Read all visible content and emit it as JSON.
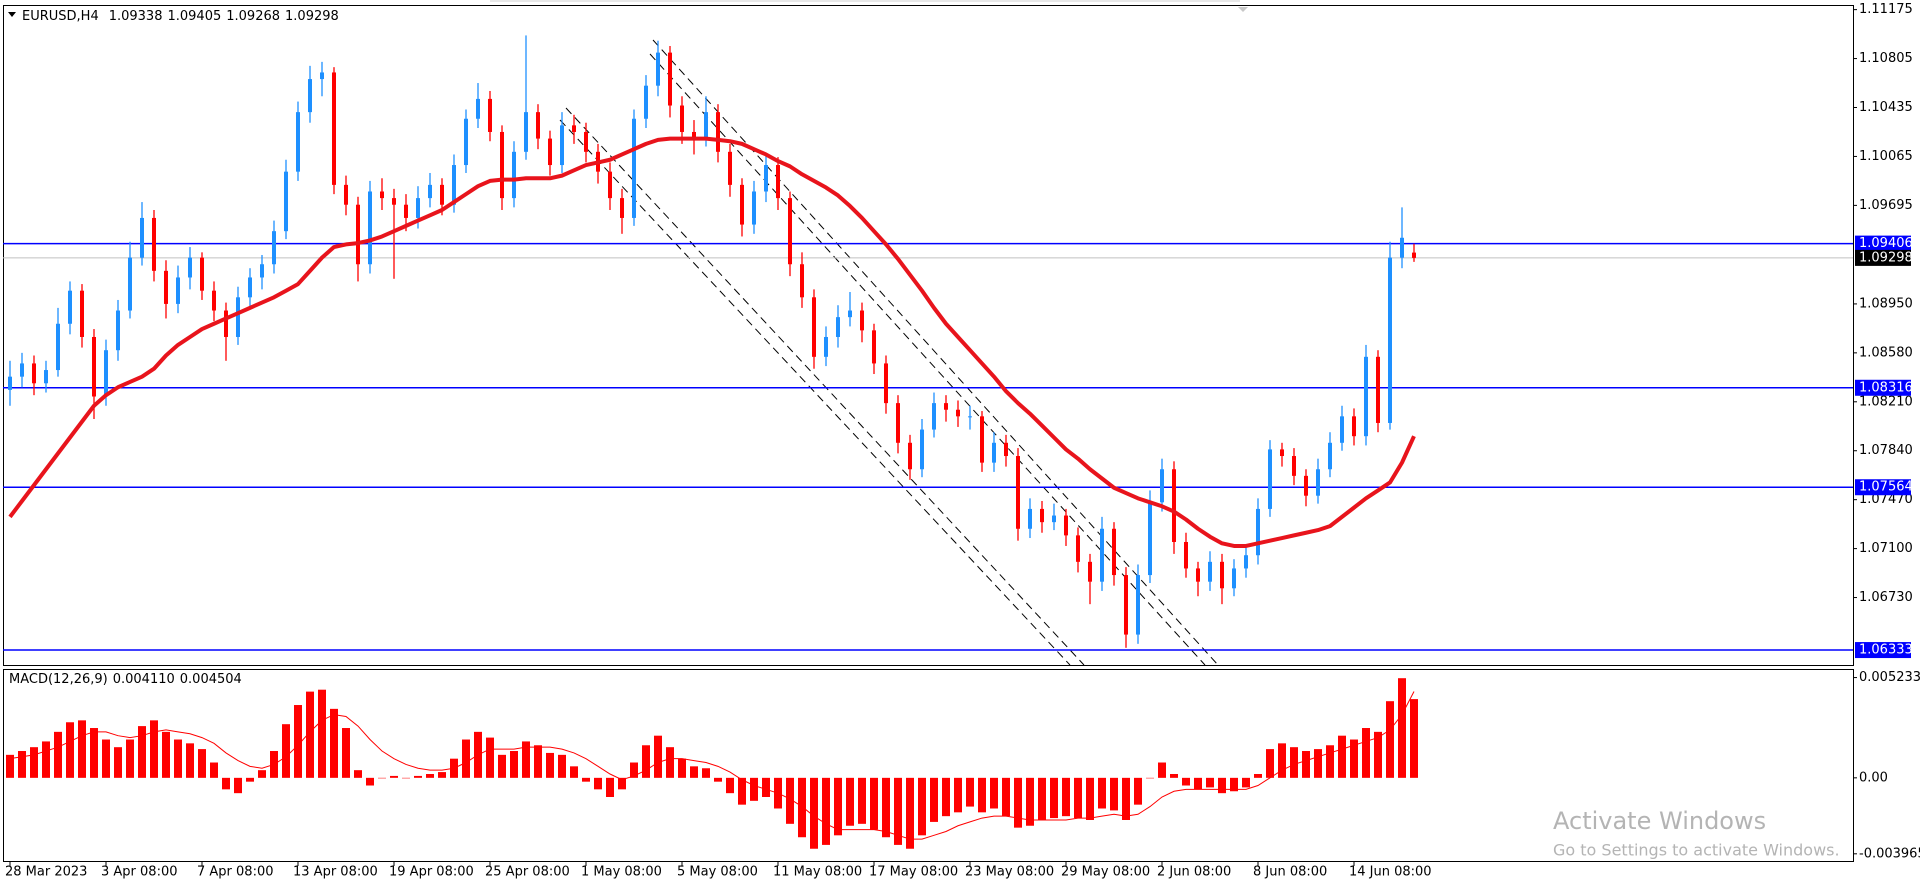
{
  "chart_data": [
    {
      "type": "candlestick",
      "title": "EURUSD,H4",
      "categories": [
        "28 Mar 2023",
        null,
        null,
        null,
        null,
        null,
        null,
        null,
        "3 Apr 08:00",
        null,
        null,
        null,
        null,
        null,
        null,
        null,
        "7 Apr 08:00",
        null,
        null,
        null,
        null,
        null,
        null,
        null,
        "13 Apr 08:00",
        null,
        null,
        null,
        null,
        null,
        null,
        null,
        "19 Apr 08:00",
        null,
        null,
        null,
        null,
        null,
        null,
        null,
        "25 Apr 08:00",
        null,
        null,
        null,
        null,
        null,
        null,
        null,
        "1 May 08:00",
        null,
        null,
        null,
        null,
        null,
        null,
        null,
        "5 May 08:00",
        null,
        null,
        null,
        null,
        null,
        null,
        null,
        "11 May 08:00",
        null,
        null,
        null,
        null,
        null,
        null,
        null,
        "17 May 08:00",
        null,
        null,
        null,
        null,
        null,
        null,
        null,
        "23 May 08:00",
        null,
        null,
        null,
        null,
        null,
        null,
        null,
        "29 May 08:00",
        null,
        null,
        null,
        null,
        null,
        null,
        null,
        "2 Jun 08:00",
        null,
        null,
        null,
        null,
        null,
        null,
        null,
        "8 Jun 08:00",
        null,
        null,
        null,
        null,
        null,
        null,
        null,
        "14 Jun 08:00",
        null,
        null,
        null,
        null,
        null
      ],
      "open": [
        1.083,
        1.084,
        1.085,
        1.0835,
        1.0845,
        1.088,
        1.0905,
        1.087,
        1.0825,
        1.086,
        1.089,
        1.093,
        1.096,
        1.092,
        1.0895,
        1.0915,
        1.093,
        1.0905,
        1.089,
        1.087,
        1.09,
        1.0915,
        1.0925,
        1.095,
        1.0995,
        1.104,
        1.1065,
        1.107,
        1.0985,
        1.097,
        1.0925,
        1.098,
        1.0975,
        1.097,
        1.096,
        1.0975,
        1.0985,
        1.097,
        1.1,
        1.1035,
        1.105,
        1.1025,
        1.0975,
        1.101,
        1.104,
        1.102,
        1.1,
        1.103,
        1.1025,
        1.101,
        1.0995,
        1.0975,
        1.096,
        1.1035,
        1.106,
        1.1085,
        1.1045,
        1.1025,
        1.102,
        1.104,
        1.101,
        1.0985,
        1.0955,
        1.098,
        1.1,
        1.0975,
        1.0925,
        1.09,
        1.0855,
        1.087,
        1.0885,
        1.089,
        1.0875,
        1.085,
        1.082,
        1.079,
        1.077,
        1.08,
        1.082,
        1.0815,
        1.081,
        1.081,
        1.0775,
        1.079,
        1.078,
        1.0725,
        1.074,
        1.073,
        1.0735,
        1.072,
        1.07,
        1.0685,
        1.0725,
        1.069,
        1.0645,
        1.069,
        1.0745,
        1.077,
        1.0715,
        1.0695,
        1.0685,
        1.07,
        1.068,
        1.0695,
        1.0705,
        1.074,
        1.0785,
        1.078,
        1.0765,
        1.075,
        1.077,
        1.079,
        1.081,
        1.0795,
        1.0855,
        1.0805,
        1.093,
        1.09338
      ],
      "high": [
        1.0852,
        1.0858,
        1.0856,
        1.0852,
        1.0892,
        1.0912,
        1.091,
        1.0876,
        1.0868,
        1.0898,
        1.0942,
        1.0972,
        1.0966,
        1.0928,
        1.0924,
        1.0938,
        1.0934,
        1.0912,
        1.0896,
        1.0908,
        1.0922,
        1.0932,
        1.0958,
        1.1004,
        1.1048,
        1.1075,
        1.1078,
        1.1074,
        1.0992,
        1.0976,
        1.0988,
        1.099,
        1.0982,
        1.0978,
        1.0984,
        1.0994,
        1.099,
        1.1008,
        1.1042,
        1.1062,
        1.1056,
        1.103,
        1.1018,
        1.1098,
        1.1046,
        1.1026,
        1.104,
        1.1038,
        1.1032,
        1.1016,
        1.1002,
        1.0982,
        1.1042,
        1.1068,
        1.1094,
        1.109,
        1.1052,
        1.1034,
        1.1052,
        1.1046,
        1.1016,
        1.099,
        1.0988,
        1.1008,
        1.1006,
        1.098,
        1.0934,
        1.0906,
        1.0878,
        1.0894,
        1.0904,
        1.0896,
        1.088,
        1.0856,
        1.0826,
        1.0796,
        1.0808,
        1.0828,
        1.0826,
        1.0822,
        1.0818,
        1.0814,
        1.0798,
        1.0796,
        1.0786,
        1.0748,
        1.0746,
        1.0744,
        1.074,
        1.0726,
        1.0706,
        1.0734,
        1.073,
        1.0696,
        1.0698,
        1.0754,
        1.0778,
        1.0776,
        1.0722,
        1.07,
        1.0708,
        1.0706,
        1.0702,
        1.0712,
        1.0748,
        1.0792,
        1.079,
        1.0786,
        1.077,
        1.0778,
        1.0798,
        1.0818,
        1.0816,
        1.0864,
        1.086,
        1.0942,
        1.0968,
        1.09405
      ],
      "low": [
        1.0818,
        1.0832,
        1.0826,
        1.0828,
        1.084,
        1.0872,
        1.0862,
        1.0808,
        1.0818,
        1.0852,
        1.0884,
        1.0924,
        1.0912,
        1.0884,
        1.0888,
        1.0906,
        1.0898,
        1.0882,
        1.0852,
        1.0864,
        1.0892,
        1.0906,
        1.0918,
        1.0944,
        1.0988,
        1.1032,
        1.1052,
        1.0978,
        1.0962,
        1.0912,
        1.0918,
        1.0966,
        1.0914,
        1.095,
        1.0952,
        1.0968,
        1.0962,
        1.0964,
        1.0994,
        1.1028,
        1.1018,
        1.0966,
        1.0968,
        1.1004,
        1.1012,
        1.0992,
        1.0994,
        1.1016,
        1.1002,
        1.0986,
        1.0966,
        1.0948,
        1.0954,
        1.1028,
        1.1052,
        1.1036,
        1.1016,
        1.1008,
        1.1014,
        1.1002,
        1.0976,
        1.0946,
        1.0948,
        1.0972,
        1.0966,
        1.0916,
        1.0892,
        1.0846,
        1.0848,
        1.0862,
        1.0878,
        1.0866,
        1.0842,
        1.0812,
        1.0782,
        1.0762,
        1.0764,
        1.0794,
        1.0806,
        1.0802,
        1.08,
        1.0768,
        1.0768,
        1.0772,
        1.0716,
        1.0718,
        1.0722,
        1.0724,
        1.0712,
        1.0692,
        1.0668,
        1.0678,
        1.0682,
        1.0635,
        1.0638,
        1.0684,
        1.0738,
        1.0706,
        1.0688,
        1.0674,
        1.0678,
        1.0668,
        1.0674,
        1.0688,
        1.0698,
        1.0734,
        1.0772,
        1.0758,
        1.0742,
        1.0744,
        1.0764,
        1.0784,
        1.0788,
        1.0788,
        1.0798,
        1.08,
        1.0922,
        1.09268
      ],
      "close": [
        1.084,
        1.085,
        1.0835,
        1.0845,
        1.088,
        1.0905,
        1.087,
        1.0825,
        1.086,
        1.089,
        1.093,
        1.096,
        1.092,
        1.0895,
        1.0915,
        1.093,
        1.0905,
        1.089,
        1.087,
        1.09,
        1.0915,
        1.0925,
        1.095,
        1.0995,
        1.104,
        1.1065,
        1.107,
        1.0985,
        1.097,
        1.0925,
        1.098,
        1.0975,
        1.097,
        1.096,
        1.0975,
        1.0985,
        1.097,
        1.1,
        1.1035,
        1.105,
        1.1025,
        1.0975,
        1.101,
        1.104,
        1.102,
        1.1,
        1.103,
        1.1025,
        1.101,
        1.0995,
        1.0975,
        1.096,
        1.1035,
        1.106,
        1.1085,
        1.1045,
        1.1025,
        1.102,
        1.104,
        1.101,
        1.0985,
        1.0955,
        1.098,
        1.1,
        1.0975,
        1.0925,
        1.09,
        1.0855,
        1.087,
        1.0885,
        1.089,
        1.0875,
        1.085,
        1.082,
        1.079,
        1.077,
        1.08,
        1.082,
        1.0815,
        1.081,
        1.081,
        1.0775,
        1.079,
        1.078,
        1.0725,
        1.074,
        1.073,
        1.0735,
        1.072,
        1.07,
        1.0685,
        1.0725,
        1.069,
        1.0645,
        1.069,
        1.0745,
        1.077,
        1.0715,
        1.0695,
        1.0685,
        1.07,
        1.068,
        1.0695,
        1.0705,
        1.074,
        1.0785,
        1.078,
        1.0765,
        1.075,
        1.077,
        1.079,
        1.081,
        1.0795,
        1.0855,
        1.0805,
        1.093,
        1.0945,
        1.09298
      ],
      "ma": [
        1.0734,
        1.0746,
        1.0758,
        1.077,
        1.0782,
        1.0794,
        1.0806,
        1.0818,
        1.0826,
        1.0832,
        1.0836,
        1.084,
        1.0846,
        1.0856,
        1.0864,
        1.087,
        1.0876,
        1.088,
        1.0884,
        1.0888,
        1.0892,
        1.0896,
        1.09,
        1.0905,
        1.091,
        1.092,
        1.093,
        1.0938,
        1.094,
        1.0941,
        1.0943,
        1.0946,
        1.095,
        1.0954,
        1.0958,
        1.0962,
        1.0966,
        1.0972,
        1.0978,
        1.0984,
        1.0988,
        1.0989,
        1.0989,
        1.099,
        1.099,
        1.099,
        1.0992,
        1.0996,
        1.1,
        1.1002,
        1.1004,
        1.1008,
        1.1012,
        1.1016,
        1.1019,
        1.102,
        1.102,
        1.102,
        1.102,
        1.1019,
        1.1018,
        1.1016,
        1.1012,
        1.1008,
        1.1003,
        1.0999,
        1.0993,
        1.0988,
        1.0983,
        1.0977,
        1.0969,
        1.096,
        1.095,
        1.094,
        1.0929,
        1.0917,
        1.0905,
        1.0892,
        1.088,
        1.087,
        1.086,
        1.085,
        1.084,
        1.0829,
        1.082,
        1.0812,
        1.0803,
        1.0794,
        1.0785,
        1.0778,
        1.077,
        1.0763,
        1.0756,
        1.0752,
        1.0748,
        1.0745,
        1.0742,
        1.0738,
        1.0732,
        1.0725,
        1.0719,
        1.0714,
        1.0712,
        1.0712,
        1.0714,
        1.0716,
        1.0718,
        1.072,
        1.0722,
        1.0724,
        1.0727,
        1.0734,
        1.0741,
        1.0748,
        1.0754,
        1.076,
        1.0775,
        1.0795
      ],
      "up_color": "#1e90ff",
      "down_color": "#ff0000",
      "ma_color": "#e8141c",
      "levels": [
        1.09406,
        1.08316,
        1.07564,
        1.06333
      ],
      "level_color": "#0000ff",
      "price_line_color": "#c0c0c0",
      "ylim": [
        1.0622,
        1.1121
      ],
      "yticks": [
        1.11175,
        1.10805,
        1.10435,
        1.10065,
        1.09695,
        {
          "value": 1.0895,
          "label": "1.08950"
        },
        {
          "value": 1.0858,
          "label": "1.08580"
        },
        {
          "value": 1.0821,
          "label": "1.08210"
        },
        {
          "value": 1.0784,
          "label": "1.07840"
        },
        {
          "value": 1.0747,
          "label": "1.07470"
        },
        {
          "value": 1.071,
          "label": "1.07100"
        },
        {
          "value": 1.0673,
          "label": "1.06730"
        }
      ],
      "grid": false
    },
    {
      "type": "bar",
      "title": "MACD(12,26,9)",
      "color": "#ff0000",
      "line_color": "#ff0000",
      "values": [
        0.0012,
        0.0014,
        0.0016,
        0.0019,
        0.0024,
        0.0029,
        0.003,
        0.0026,
        0.002,
        0.0016,
        0.002,
        0.0027,
        0.003,
        0.0024,
        0.002,
        0.0018,
        0.0015,
        0.0008,
        -0.0006,
        -0.0008,
        -0.0002,
        0.0004,
        0.0014,
        0.0028,
        0.0038,
        0.0045,
        0.0046,
        0.0036,
        0.0026,
        0.0004,
        -0.0004,
        0.0,
        0.0001,
        0.0,
        0.0001,
        0.0002,
        0.0003,
        0.001,
        0.002,
        0.0024,
        0.0021,
        0.0012,
        0.0014,
        0.0019,
        0.0017,
        0.0013,
        0.0012,
        0.0006,
        -0.0002,
        -0.0006,
        -0.001,
        -0.0006,
        0.0008,
        0.0017,
        0.0022,
        0.0016,
        0.001,
        0.0006,
        0.0005,
        -0.0002,
        -0.0008,
        -0.0014,
        -0.0012,
        -0.001,
        -0.0016,
        -0.0024,
        -0.0031,
        -0.0037,
        -0.0035,
        -0.003,
        -0.0025,
        -0.0024,
        -0.0027,
        -0.0031,
        -0.0035,
        -0.0037,
        -0.003,
        -0.0023,
        -0.002,
        -0.0018,
        -0.0015,
        -0.0018,
        -0.0016,
        -0.002,
        -0.0026,
        -0.0025,
        -0.0022,
        -0.0021,
        -0.002,
        -0.0021,
        -0.0022,
        -0.0016,
        -0.0017,
        -0.0022,
        -0.0014,
        0.0,
        0.0008,
        0.0002,
        -0.0004,
        -0.0006,
        -0.0005,
        -0.0008,
        -0.0007,
        -0.0005,
        0.0002,
        0.0015,
        0.0018,
        0.0016,
        0.0014,
        0.0015,
        0.0017,
        0.0022,
        0.002,
        0.0026,
        0.0024,
        0.004,
        0.0052,
        0.00411
      ],
      "value_labels": [
        null,
        null,
        null,
        null,
        null,
        null,
        null,
        null,
        null,
        null,
        null,
        null,
        null,
        null,
        null,
        null,
        null,
        null,
        null,
        null,
        null,
        null,
        null,
        null,
        null,
        null,
        null,
        null,
        null,
        null,
        null,
        null,
        null,
        null,
        null,
        null,
        null,
        null,
        null,
        null,
        null,
        null,
        null,
        null,
        null,
        null,
        null,
        null,
        null,
        null,
        null,
        null,
        null,
        null,
        null,
        null,
        null,
        null,
        null,
        null,
        null,
        null,
        null,
        null,
        null,
        null,
        null,
        null,
        null,
        null,
        null,
        null,
        null,
        null,
        null,
        null,
        null,
        null,
        null,
        null,
        null,
        null,
        null,
        null,
        null,
        null,
        null,
        null,
        null,
        null,
        null,
        null,
        null,
        null,
        null,
        null,
        null,
        null,
        null,
        null,
        null,
        null,
        null,
        null,
        null,
        null,
        null,
        null,
        null,
        null,
        null,
        null,
        null,
        null,
        null,
        null,
        null,
        "0.004110"
      ],
      "line_values": [
        0.001,
        0.0011,
        0.0012,
        0.0014,
        0.0016,
        0.0019,
        0.0022,
        0.0024,
        0.0024,
        0.0022,
        0.0021,
        0.0022,
        0.0024,
        0.0025,
        0.0024,
        0.0023,
        0.0021,
        0.0018,
        0.0013,
        0.0009,
        0.0006,
        0.0005,
        0.0007,
        0.0011,
        0.0017,
        0.0024,
        0.003,
        0.0033,
        0.0032,
        0.0027,
        0.002,
        0.0014,
        0.001,
        0.0007,
        0.0005,
        0.0004,
        0.0004,
        0.0005,
        0.0008,
        0.0012,
        0.0015,
        0.0015,
        0.0015,
        0.0016,
        0.0016,
        0.0016,
        0.0015,
        0.0013,
        0.001,
        0.0006,
        0.0002,
        -0.0001,
        0.0001,
        0.0004,
        0.0008,
        0.001,
        0.001,
        0.0009,
        0.0008,
        0.0006,
        0.0003,
        -0.0001,
        -0.0004,
        -0.0006,
        -0.0008,
        -0.0011,
        -0.0015,
        -0.002,
        -0.0024,
        -0.0027,
        -0.0027,
        -0.0027,
        -0.0027,
        -0.0028,
        -0.003,
        -0.0032,
        -0.0032,
        -0.003,
        -0.0028,
        -0.0025,
        -0.0023,
        -0.0021,
        -0.002,
        -0.002,
        -0.0021,
        -0.0022,
        -0.0022,
        -0.0022,
        -0.0022,
        -0.0021,
        -0.0021,
        -0.002,
        -0.0019,
        -0.002,
        -0.0019,
        -0.0015,
        -0.001,
        -0.0007,
        -0.0006,
        -0.0006,
        -0.0006,
        -0.0006,
        -0.0006,
        -0.0006,
        -0.0004,
        0.0,
        0.0004,
        0.0007,
        0.0009,
        0.0011,
        0.0013,
        0.0015,
        0.0017,
        0.0019,
        0.0021,
        0.0025,
        0.0033,
        0.004504
      ],
      "line_value_labels": [
        null,
        null,
        null,
        null,
        null,
        null,
        null,
        null,
        null,
        null,
        null,
        null,
        null,
        null,
        null,
        null,
        null,
        null,
        null,
        null,
        null,
        null,
        null,
        null,
        null,
        null,
        null,
        null,
        null,
        null,
        null,
        null,
        null,
        null,
        null,
        null,
        null,
        null,
        null,
        null,
        null,
        null,
        null,
        null,
        null,
        null,
        null,
        null,
        null,
        null,
        null,
        null,
        null,
        null,
        null,
        null,
        null,
        null,
        null,
        null,
        null,
        null,
        null,
        null,
        null,
        null,
        null,
        null,
        null,
        null,
        null,
        null,
        null,
        null,
        null,
        null,
        null,
        null,
        null,
        null,
        null,
        null,
        null,
        null,
        null,
        null,
        null,
        null,
        null,
        null,
        null,
        null,
        null,
        null,
        null,
        null,
        null,
        null,
        null,
        null,
        null,
        null,
        null,
        null,
        null,
        null,
        null,
        null,
        null,
        null,
        null,
        null,
        null,
        null,
        null,
        null,
        null,
        "0.004504"
      ],
      "ylim": [
        -0.00434,
        0.00568
      ],
      "yticks": [
        0.005233,
        {
          "value": 0,
          "label": "0.00"
        },
        -0.003965
      ],
      "grid": false
    }
  ],
  "overlay": {
    "title": "Activate Windows",
    "subtitle": "Go to Settings to activate Windows."
  }
}
